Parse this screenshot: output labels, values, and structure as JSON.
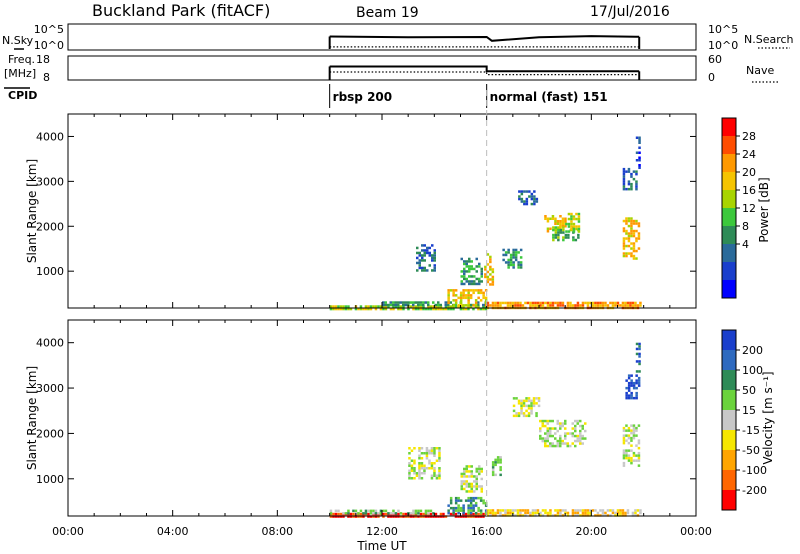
{
  "header": {
    "station": "Buckland Park (fitACF)",
    "beam": "Beam 19",
    "date": "17/Jul/2016"
  },
  "left_labels": {
    "nsky": "N.Sky",
    "freq_top": "Freq.",
    "freq_unit": "[MHz]",
    "cpid": "CPID"
  },
  "right_labels": {
    "nsearch": "N.Search",
    "nave": "Nave"
  },
  "chart_data": [
    {
      "type": "line",
      "panel": "noise",
      "left_ticks": [
        "10^5",
        "10^0"
      ],
      "right_ticks": [
        "10^5",
        "10^0"
      ],
      "series": [
        {
          "name": "N.Sky",
          "style": "solid",
          "x": [
            10.0,
            13.0,
            16.0,
            16.2,
            18.0,
            20.0,
            21.83
          ],
          "y": [
            3.2,
            3.0,
            3.05,
            2.0,
            3.0,
            3.3,
            3.1
          ]
        },
        {
          "name": "N.Search",
          "style": "dotted",
          "x": [
            10.0,
            21.83
          ],
          "y": [
            0.3,
            0.3
          ]
        }
      ]
    },
    {
      "type": "line",
      "panel": "frequency",
      "left_ticks": [
        "18",
        "8"
      ],
      "right_ticks": [
        "60",
        "0"
      ],
      "series": [
        {
          "name": "Freq.",
          "style": "solid",
          "x": [
            10.0,
            16.0,
            16.0,
            21.83
          ],
          "y": [
            13.7,
            13.7,
            11.5,
            11.5
          ]
        },
        {
          "name": "Nave",
          "style": "dotted",
          "x": [
            10.0,
            16.0,
            16.0,
            21.83
          ],
          "y": [
            19,
            19,
            12,
            12
          ]
        }
      ]
    },
    {
      "type": "table",
      "panel": "cpid",
      "segments": [
        {
          "label": "rbsp 200",
          "start": 10.0,
          "end": 16.0
        },
        {
          "label": "normal (fast) 151",
          "start": 16.0,
          "end": 21.83
        }
      ]
    },
    {
      "type": "heatmap",
      "panel": "power",
      "xlim": [
        0,
        24
      ],
      "ylim": [
        180,
        4500
      ],
      "ylabel": "Slant Range [km]",
      "yticks": [
        1000,
        2000,
        3000,
        4000
      ],
      "colorbar": {
        "label": "Power [dB]",
        "ticks": [
          "28",
          "24",
          "20",
          "16",
          "12",
          "8",
          "4"
        ],
        "colors": [
          "#ff0000",
          "#ff4d00",
          "#ff9900",
          "#f5c400",
          "#a8d400",
          "#3cc83c",
          "#2e8b57",
          "#2a6a9a",
          "#1a3fcc",
          "#0000ff"
        ]
      },
      "regions": [
        {
          "t": [
            10.0,
            16.0
          ],
          "r": [
            180,
            240
          ],
          "level": 4
        },
        {
          "t": [
            12.0,
            16.0
          ],
          "r": [
            240,
            330
          ],
          "level": 6
        },
        {
          "t": [
            14.5,
            16.0
          ],
          "r": [
            250,
            600
          ],
          "level": 3
        },
        {
          "t": [
            16.0,
            21.83
          ],
          "r": [
            180,
            320
          ],
          "level": 2
        },
        {
          "t": [
            13.3,
            14.0
          ],
          "r": [
            1000,
            1600
          ],
          "level": 7
        },
        {
          "t": [
            15.0,
            15.8
          ],
          "r": [
            700,
            1300
          ],
          "level": 6
        },
        {
          "t": [
            15.9,
            16.2
          ],
          "r": [
            700,
            1400
          ],
          "level": 3
        },
        {
          "t": [
            16.6,
            17.3
          ],
          "r": [
            1100,
            1500
          ],
          "level": 6
        },
        {
          "t": [
            17.2,
            17.9
          ],
          "r": [
            2500,
            2800
          ],
          "level": 7
        },
        {
          "t": [
            18.2,
            19.0
          ],
          "r": [
            1900,
            2250
          ],
          "level": 3
        },
        {
          "t": [
            18.5,
            19.5
          ],
          "r": [
            1700,
            2000
          ],
          "level": 5
        },
        {
          "t": [
            19.0,
            19.5
          ],
          "r": [
            1900,
            2300
          ],
          "level": 4
        },
        {
          "t": [
            21.2,
            21.8
          ],
          "r": [
            1300,
            2200
          ],
          "level": 3
        },
        {
          "t": [
            21.2,
            21.7
          ],
          "r": [
            2800,
            3300
          ],
          "level": 7
        },
        {
          "t": [
            21.7,
            21.85
          ],
          "r": [
            3300,
            4000
          ],
          "level": 8
        }
      ]
    },
    {
      "type": "heatmap",
      "panel": "velocity",
      "xlim": [
        0,
        24
      ],
      "ylim": [
        180,
        4500
      ],
      "xlabel": "Time UT",
      "ylabel": "Slant Range [km]",
      "xticks": [
        "00:00",
        "04:00",
        "08:00",
        "12:00",
        "16:00",
        "20:00",
        "00:00"
      ],
      "yticks": [
        1000,
        2000,
        3000,
        4000
      ],
      "colorbar": {
        "label": "Velocity [m s⁻¹]",
        "ticks": [
          "200",
          "100",
          "50",
          "15",
          "-15",
          "-50",
          "-100",
          "-200"
        ],
        "colors": [
          "#1a3fcc",
          "#2e6abf",
          "#2e8b57",
          "#6bd33c",
          "#c8c8c8",
          "#f5e600",
          "#ffa500",
          "#ff6600",
          "#ff0000"
        ]
      },
      "regions": [
        {
          "t": [
            10.0,
            16.0
          ],
          "r": [
            180,
            250
          ],
          "level": 8
        },
        {
          "t": [
            10.0,
            14.0
          ],
          "r": [
            250,
            320
          ],
          "level": 3
        },
        {
          "t": [
            14.5,
            16.0
          ],
          "r": [
            250,
            600
          ],
          "level": 2
        },
        {
          "t": [
            16.0,
            21.83
          ],
          "r": [
            180,
            330
          ],
          "level": 5
        },
        {
          "t": [
            13.0,
            14.2
          ],
          "r": [
            1000,
            1700
          ],
          "level": 4
        },
        {
          "t": [
            15.0,
            15.8
          ],
          "r": [
            700,
            1300
          ],
          "level": 4
        },
        {
          "t": [
            16.2,
            16.5
          ],
          "r": [
            1100,
            1500
          ],
          "level": 3
        },
        {
          "t": [
            17.0,
            18.0
          ],
          "r": [
            2400,
            2800
          ],
          "level": 4
        },
        {
          "t": [
            18.0,
            19.8
          ],
          "r": [
            1700,
            2300
          ],
          "level": 4
        },
        {
          "t": [
            21.2,
            21.8
          ],
          "r": [
            1300,
            2200
          ],
          "level": 4
        },
        {
          "t": [
            21.3,
            21.8
          ],
          "r": [
            2800,
            3300
          ],
          "level": 0
        },
        {
          "t": [
            21.7,
            21.85
          ],
          "r": [
            3300,
            4000
          ],
          "level": 1
        }
      ]
    }
  ]
}
